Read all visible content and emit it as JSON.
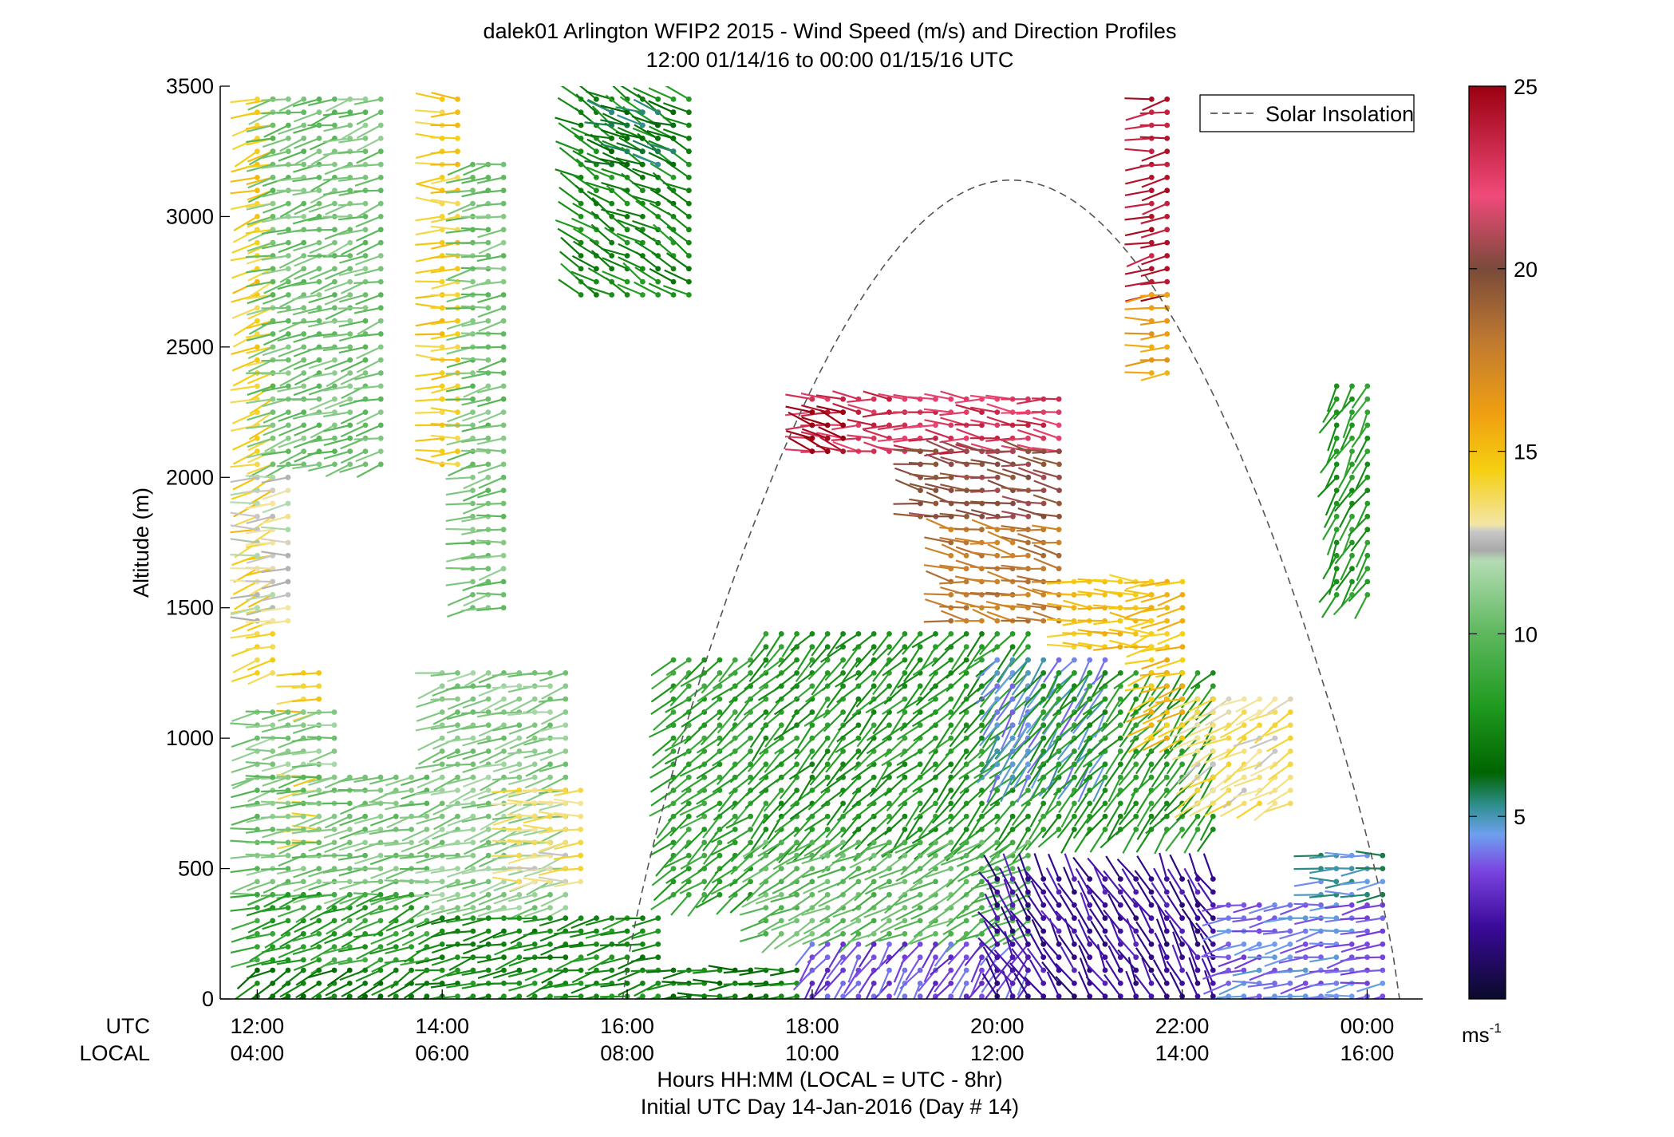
{
  "chart_data": {
    "type": "wind-barb-profile",
    "title": "dalek01 Arlington WFIP2 2015 - Wind Speed (m/s) and Direction Profiles",
    "subtitle": "12:00 01/14/16 to 00:00 01/15/16  UTC",
    "ylabel": "Altitude (m)",
    "xlabel": "Hours HH:MM  (LOCAL = UTC - 8hr)",
    "xlabel2": "Initial UTC Day 14-Jan-2016 (Day # 14)",
    "x_row_label_utc": "UTC",
    "x_row_label_local": "LOCAL",
    "ylim": [
      0,
      3500
    ],
    "yticks": [
      0,
      500,
      1000,
      1500,
      2000,
      2500,
      3000,
      3500
    ],
    "yticklabels": [
      "0",
      "500",
      "1000",
      "1500",
      "2000",
      "2500",
      "3000",
      "3500"
    ],
    "xlim_hours_utc": [
      11.6,
      24.6
    ],
    "xticks_hours_utc": [
      12,
      14,
      16,
      18,
      20,
      22,
      24
    ],
    "xticklabels_utc": [
      "12:00",
      "14:00",
      "16:00",
      "18:00",
      "20:00",
      "22:00",
      "00:00"
    ],
    "xticklabels_local": [
      "04:00",
      "06:00",
      "08:00",
      "10:00",
      "12:00",
      "14:00",
      "16:00"
    ],
    "legend": {
      "entry": "Solar Insolation",
      "placement": "top-right",
      "style": "dashed gray"
    },
    "solar_insolation": {
      "start_hour": 15.95,
      "end_hour": 24.35,
      "peak_hour": 20.05,
      "peak_altitude": 3140
    },
    "colorbar": {
      "range": [
        0,
        25
      ],
      "ticks": [
        5,
        10,
        15,
        20,
        25
      ],
      "ticklabels": [
        "5",
        "10",
        "15",
        "20",
        "25"
      ],
      "unit": "ms",
      "unit_exponent": "-1",
      "colormap_stops": [
        [
          0,
          "#0a0a2a"
        ],
        [
          2,
          "#3a0a9a"
        ],
        [
          3.5,
          "#7a44e0"
        ],
        [
          4.5,
          "#6ea0f0"
        ],
        [
          5.3,
          "#2f8f8f"
        ],
        [
          6.2,
          "#006400"
        ],
        [
          8,
          "#1f9a1f"
        ],
        [
          10,
          "#5db85d"
        ],
        [
          12,
          "#b4dcb4"
        ],
        [
          12.3,
          "#a9a9a9"
        ],
        [
          12.8,
          "#c8c8c8"
        ],
        [
          13,
          "#f3e6a6"
        ],
        [
          14.5,
          "#f5cf10"
        ],
        [
          16,
          "#f0a010"
        ],
        [
          18,
          "#c07a30"
        ],
        [
          20,
          "#7a4a3a"
        ],
        [
          22,
          "#f04a7a"
        ],
        [
          25,
          "#9a0010"
        ]
      ]
    },
    "wind_field": {
      "time_step_hours": 0.1667,
      "height_step_m": 50,
      "note_units": "speed in m/s, direction in degrees from north (meteorological)",
      "regions": [
        {
          "t": [
            12.0,
            12.17
          ],
          "z": [
            1250,
            3450
          ],
          "speed": 14.5,
          "dir": 250
        },
        {
          "t": [
            12.17,
            13.5
          ],
          "z": [
            2050,
            3450
          ],
          "speed": 10.5,
          "dir": 255
        },
        {
          "t": [
            12.0,
            12.5
          ],
          "z": [
            1450,
            2000
          ],
          "speed": 12.5,
          "dir": 265
        },
        {
          "t": [
            12.5,
            12.67
          ],
          "z": [
            1100,
            1250
          ],
          "speed": 14.5,
          "dir": 265
        },
        {
          "t": [
            12.0,
            13.0
          ],
          "z": [
            850,
            1100
          ],
          "speed": 11,
          "dir": 260
        },
        {
          "t": [
            12.5,
            12.83
          ],
          "z": [
            600,
            850
          ],
          "speed": 14,
          "dir": 265
        },
        {
          "t": [
            12.0,
            14.0
          ],
          "z": [
            400,
            850
          ],
          "speed": 10.5,
          "dir": 260
        },
        {
          "t": [
            12.0,
            14.0
          ],
          "z": [
            150,
            400
          ],
          "speed": 8.5,
          "dir": 250
        },
        {
          "t": [
            12.0,
            14.0
          ],
          "z": [
            10,
            150
          ],
          "speed": 7,
          "dir": 240
        },
        {
          "t": [
            14.0,
            14.33
          ],
          "z": [
            2050,
            3450
          ],
          "speed": 14.5,
          "dir": 270
        },
        {
          "t": [
            14.33,
            14.83
          ],
          "z": [
            1500,
            3200
          ],
          "speed": 10.5,
          "dir": 260
        },
        {
          "t": [
            14.0,
            15.5
          ],
          "z": [
            350,
            1250
          ],
          "speed": 11,
          "dir": 255
        },
        {
          "t": [
            14.83,
            15.5
          ],
          "z": [
            450,
            800
          ],
          "speed": 13.5,
          "dir": 265
        },
        {
          "t": [
            14.0,
            16.5
          ],
          "z": [
            10,
            350
          ],
          "speed": 7.5,
          "dir": 255
        },
        {
          "t": [
            15.5,
            16.7
          ],
          "z": [
            2700,
            3450
          ],
          "speed": 7.5,
          "dir": 300
        },
        {
          "t": [
            15.83,
            16.5
          ],
          "z": [
            3200,
            3400
          ],
          "speed": 6,
          "dir": 290
        },
        {
          "t": [
            16.5,
            17.5
          ],
          "z": [
            400,
            1300
          ],
          "speed": 8.5,
          "dir": 230
        },
        {
          "t": [
            16.5,
            18.0
          ],
          "z": [
            10,
            150
          ],
          "speed": 7,
          "dir": 265
        },
        {
          "t": [
            17.5,
            20.5
          ],
          "z": [
            600,
            1400
          ],
          "speed": 8,
          "dir": 225
        },
        {
          "t": [
            17.5,
            20.5
          ],
          "z": [
            250,
            600
          ],
          "speed": 10,
          "dir": 240
        },
        {
          "t": [
            18.0,
            20.5
          ],
          "z": [
            10,
            250
          ],
          "speed": 3.5,
          "dir": 215
        },
        {
          "t": [
            20.0,
            21.17
          ],
          "z": [
            850,
            1300
          ],
          "speed": 4.5,
          "dir": 215
        },
        {
          "t": [
            20.0,
            22.5
          ],
          "z": [
            10,
            500
          ],
          "speed": 2,
          "dir": 330
        },
        {
          "t": [
            20.5,
            22.5
          ],
          "z": [
            650,
            1250
          ],
          "speed": 8,
          "dir": 220
        },
        {
          "t": [
            18.0,
            20.83
          ],
          "z": [
            2100,
            2300
          ],
          "speed": 23,
          "dir": 275
        },
        {
          "t": [
            18.0,
            18.5
          ],
          "z": [
            2100,
            2250
          ],
          "speed": 25,
          "dir": 290
        },
        {
          "t": [
            19.17,
            20.83
          ],
          "z": [
            1850,
            2100
          ],
          "speed": 20,
          "dir": 280
        },
        {
          "t": [
            19.5,
            20.83
          ],
          "z": [
            1450,
            1800
          ],
          "speed": 18,
          "dir": 280
        },
        {
          "t": [
            20.83,
            21.67
          ],
          "z": [
            1350,
            1600
          ],
          "speed": 15,
          "dir": 275
        },
        {
          "t": [
            21.67,
            22.0
          ],
          "z": [
            2700,
            3450
          ],
          "speed": 24,
          "dir": 260
        },
        {
          "t": [
            21.67,
            22.0
          ],
          "z": [
            2400,
            2700
          ],
          "speed": 16,
          "dir": 265
        },
        {
          "t": [
            21.67,
            22.17
          ],
          "z": [
            1000,
            1600
          ],
          "speed": 15,
          "dir": 250
        },
        {
          "t": [
            22.17,
            23.33
          ],
          "z": [
            750,
            1150
          ],
          "speed": 13.5,
          "dir": 240
        },
        {
          "t": [
            22.5,
            24.33
          ],
          "z": [
            10,
            400
          ],
          "speed": 4,
          "dir": 260
        },
        {
          "t": [
            23.67,
            24.17
          ],
          "z": [
            1550,
            2350
          ],
          "speed": 8,
          "dir": 210
        },
        {
          "t": [
            23.5,
            24.33
          ],
          "z": [
            400,
            550
          ],
          "speed": 5,
          "dir": 265
        }
      ]
    }
  }
}
